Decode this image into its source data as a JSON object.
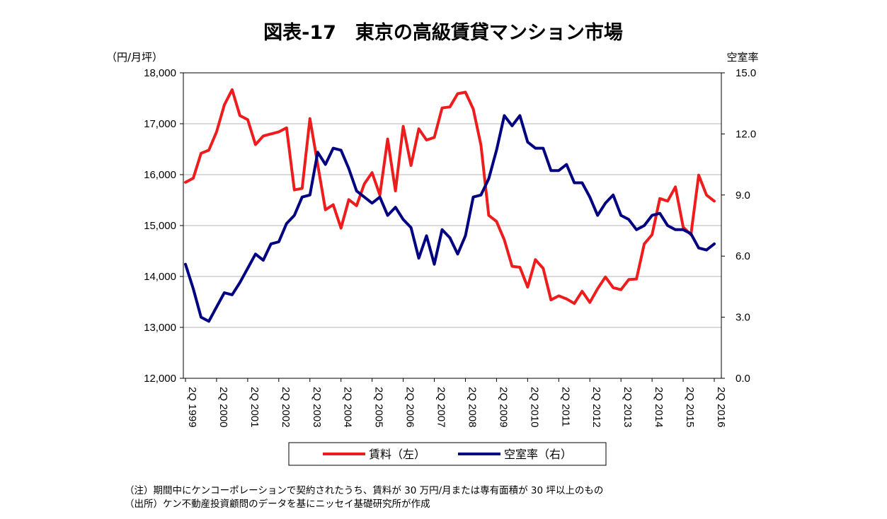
{
  "chart_data": {
    "type": "line",
    "title": "図表-17　東京の高級賃貸マンション市場",
    "left_axis": {
      "unit_label": "（円/月坪）",
      "min": 12000,
      "max": 18000,
      "step": 1000,
      "tick_labels": [
        "12,000",
        "13,000",
        "14,000",
        "15,000",
        "16,000",
        "17,000",
        "18,000"
      ]
    },
    "right_axis": {
      "unit_label": "空室率",
      "min": 0,
      "max": 15,
      "step": 3,
      "tick_labels": [
        "0.0",
        "3.0",
        "6.0",
        "9.0",
        "12.0",
        "15.0"
      ]
    },
    "x_tick_labels": [
      "2Q 1999",
      "2Q 2000",
      "2Q 2001",
      "2Q 2002",
      "2Q 2003",
      "2Q 2004",
      "2Q 2005",
      "2Q 2006",
      "2Q 2007",
      "2Q 2008",
      "2Q 2009",
      "2Q 2010",
      "2Q 2011",
      "2Q 2012",
      "2Q 2013",
      "2Q 2014",
      "2Q 2015",
      "2Q 2016"
    ],
    "grid": true,
    "legend_position": "bottom",
    "series": [
      {
        "name": "賃料（左）",
        "axis": "left",
        "color": "#ee1c1c",
        "values": [
          15850,
          15930,
          16420,
          16480,
          16840,
          17370,
          17670,
          17160,
          17080,
          16590,
          16760,
          16800,
          16840,
          16920,
          15700,
          15730,
          17100,
          16200,
          15310,
          15410,
          14950,
          15510,
          15390,
          15820,
          16040,
          15600,
          16700,
          15680,
          16950,
          16180,
          16900,
          16680,
          16730,
          17310,
          17330,
          17590,
          17620,
          17290,
          16580,
          15200,
          15080,
          14720,
          14200,
          14180,
          13790,
          14330,
          14160,
          13540,
          13620,
          13560,
          13470,
          13710,
          13490,
          13760,
          13990,
          13780,
          13740,
          13940,
          13950,
          14640,
          14820,
          15530,
          15480,
          15760,
          14970,
          14820,
          15990,
          15600,
          15480
        ]
      },
      {
        "name": "空室率（右）",
        "axis": "right",
        "color": "#000080",
        "values": [
          5.6,
          4.4,
          3.0,
          2.8,
          3.5,
          4.2,
          4.1,
          4.7,
          5.4,
          6.1,
          5.8,
          6.6,
          6.7,
          7.6,
          8.0,
          8.9,
          9.0,
          11.1,
          10.5,
          11.3,
          11.2,
          10.3,
          9.2,
          8.9,
          8.6,
          8.9,
          8.0,
          8.4,
          7.8,
          7.4,
          5.9,
          7.0,
          5.6,
          7.3,
          6.9,
          6.1,
          7.0,
          8.9,
          9.0,
          9.8,
          11.2,
          12.9,
          12.4,
          12.9,
          11.6,
          11.3,
          11.3,
          10.2,
          10.2,
          10.5,
          9.6,
          9.6,
          8.9,
          8.0,
          8.6,
          9.0,
          8.0,
          7.8,
          7.3,
          7.5,
          8.0,
          8.1,
          7.5,
          7.3,
          7.3,
          7.1,
          6.4,
          6.3,
          6.6
        ]
      }
    ]
  },
  "legend": {
    "series1": "賃料（左）",
    "series2": "空室率（右）"
  },
  "notes": {
    "note1": "（注）期間中にケンコーポレーションで契約されたうち、賃料が 30 万円/月または専有面積が 30 坪以上のもの",
    "note2": "（出所）ケン不動産投資顧問のデータを基にニッセイ基礎研究所が作成"
  }
}
